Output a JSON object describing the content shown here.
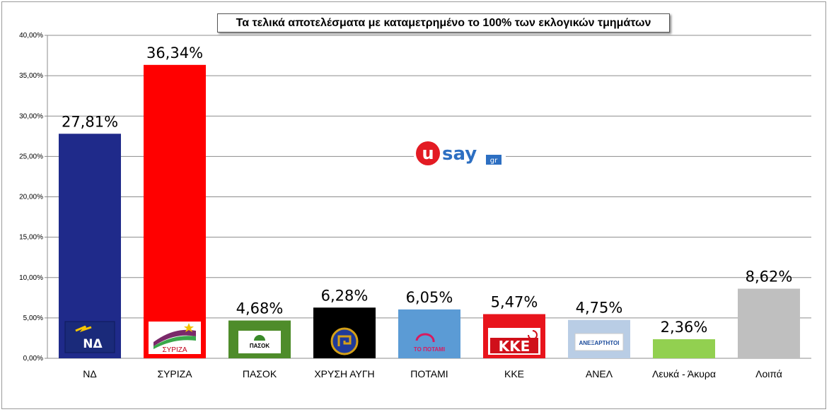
{
  "chart_data": {
    "type": "bar",
    "title": "Τα τελικά αποτελέσματα με καταμετρημένο το 100% των εκλογικών τμημάτων",
    "categories": [
      "ΝΔ",
      "ΣΥΡΙΖΑ",
      "ΠΑΣΟΚ",
      "ΧΡΥΣΗ ΑΥΓΗ",
      "ΠΟΤΑΜΙ",
      "ΚΚΕ",
      "ΑΝΕΛ",
      "Λευκά - Άκυρα",
      "Λοιπά"
    ],
    "values": [
      27.81,
      36.34,
      4.68,
      6.28,
      6.05,
      5.47,
      4.75,
      2.36,
      8.62
    ],
    "data_labels": [
      "27,81%",
      "36,34%",
      "4,68%",
      "6,28%",
      "6,05%",
      "5,47%",
      "4,75%",
      "2,36%",
      "8,62%"
    ],
    "colors": [
      "#1f2a8a",
      "#ff0000",
      "#4e8c2a",
      "#000000",
      "#5b9bd5",
      "#e8141c",
      "#b9cde5",
      "#92d050",
      "#bfbfbf"
    ],
    "ylim": [
      0,
      40
    ],
    "yticks": [
      0,
      5,
      10,
      15,
      20,
      25,
      30,
      35,
      40
    ],
    "ytick_labels": [
      "0,00%",
      "5,00%",
      "10,00%",
      "15,00%",
      "20,00%",
      "25,00%",
      "30,00%",
      "35,00%",
      "40,00%"
    ],
    "grid": true,
    "party_logos": [
      "ΝΔ",
      "ΣΥΡΙΖΑ",
      "ΠΑΣΟΚ",
      "",
      "ΤΟ ΠΟΤΑΜΙ",
      "ΚΚΕ",
      "ΑΝΕΞΑΡΤΗΤΟΙ",
      "",
      ""
    ]
  },
  "watermark": {
    "text": "usay",
    "suffix": "gr"
  }
}
